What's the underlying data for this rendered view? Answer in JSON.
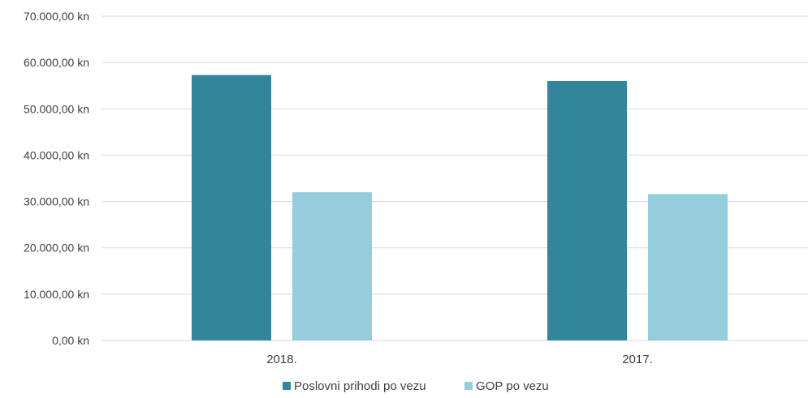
{
  "chart_data": {
    "type": "bar",
    "categories": [
      "2018.",
      "2017."
    ],
    "series": [
      {
        "name": "Poslovni prihodi po vezu",
        "color": "#31869b",
        "values": [
          57300,
          56000
        ]
      },
      {
        "name": "GOP po vezu",
        "color": "#96cddd",
        "values": [
          32000,
          31600
        ]
      }
    ],
    "ylim": [
      0,
      70000
    ],
    "yticks": [
      0,
      10000,
      20000,
      30000,
      40000,
      50000,
      60000,
      70000
    ],
    "ytick_labels": [
      "0,00 kn",
      "10.000,00 kn",
      "20.000,00 kn",
      "30.000,00 kn",
      "40.000,00 kn",
      "50.000,00 kn",
      "60.000,00 kn",
      "70.000,00 kn"
    ],
    "grid": true,
    "gridline_color": "#d9d9d9",
    "legend_position": "bottom"
  }
}
